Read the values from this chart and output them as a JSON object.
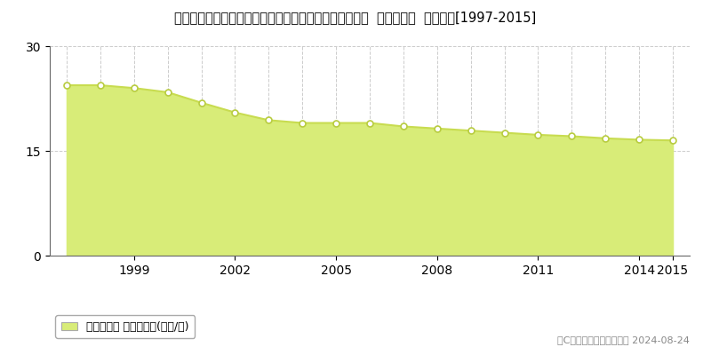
{
  "title": "愛知県名古屋市港区南陽町大字西福田字丸山４３番１外  基準地価格  地価推移[1997-2015]",
  "years": [
    1997,
    1998,
    1999,
    2000,
    2001,
    2002,
    2003,
    2004,
    2005,
    2006,
    2007,
    2008,
    2009,
    2010,
    2011,
    2012,
    2013,
    2014,
    2015
  ],
  "values": [
    24.4,
    24.4,
    24.0,
    23.4,
    21.9,
    20.5,
    19.4,
    19.0,
    19.0,
    19.0,
    18.5,
    18.2,
    17.9,
    17.6,
    17.3,
    17.1,
    16.8,
    16.6,
    16.5
  ],
  "line_color": "#c8dc50",
  "fill_color": "#d8ec78",
  "marker_facecolor": "#ffffff",
  "marker_edgecolor": "#b8cc40",
  "grid_color": "#cccccc",
  "background_color": "#ffffff",
  "ylim": [
    0,
    30
  ],
  "yticks": [
    0,
    15,
    30
  ],
  "legend_label": "基準地価格 平均坪単価(万円/坪)",
  "copyright_text": "（C）土地価格ドットコム 2024-08-24",
  "title_fontsize": 10.5,
  "legend_fontsize": 9,
  "copyright_fontsize": 8,
  "tick_fontsize": 10
}
